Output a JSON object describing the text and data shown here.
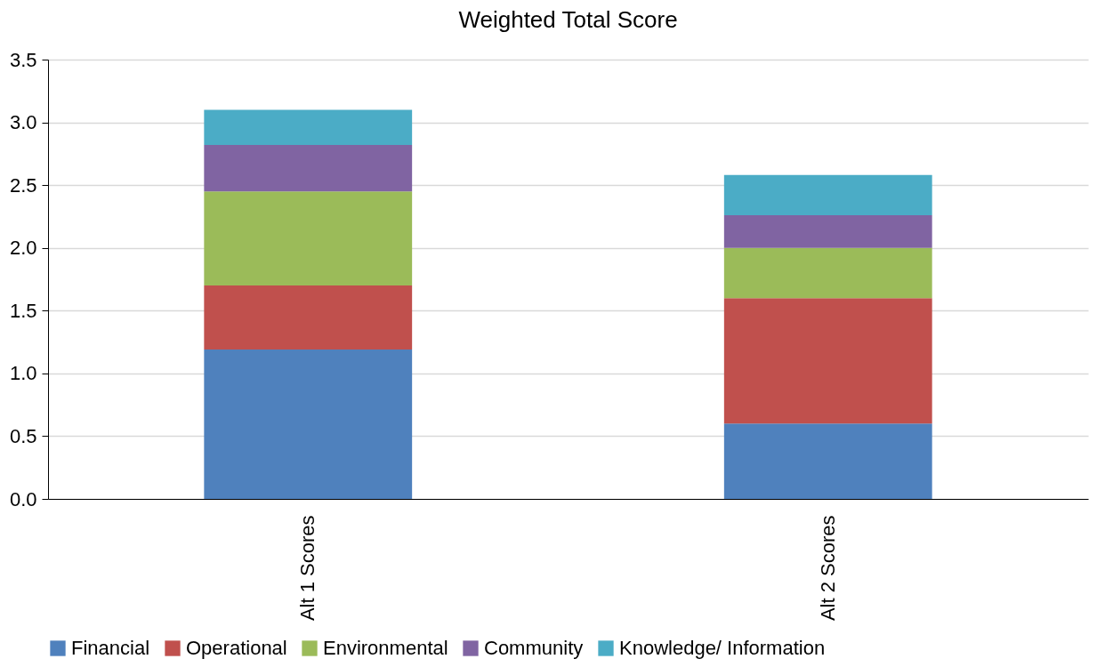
{
  "chart_data": {
    "type": "bar",
    "title": "Weighted Total Score",
    "categories": [
      "Alt 1 Scores",
      "Alt 2 Scores"
    ],
    "stacked": true,
    "series": [
      {
        "name": "Financial",
        "color": "#4f81bd",
        "values": [
          1.19,
          0.6
        ]
      },
      {
        "name": "Operational",
        "color": "#c0504d",
        "values": [
          0.51,
          1.0
        ]
      },
      {
        "name": "Environmental",
        "color": "#9bbb59",
        "values": [
          0.75,
          0.4
        ]
      },
      {
        "name": "Community",
        "color": "#8064a2",
        "values": [
          0.37,
          0.26
        ]
      },
      {
        "name": "Knowledge/ Information",
        "color": "#4bacc6",
        "values": [
          0.28,
          0.32
        ]
      }
    ],
    "ylim": [
      0,
      3.5
    ],
    "yticks": [
      {
        "value": 0,
        "label": "0.0"
      },
      {
        "value": 0.5,
        "label": "0.5"
      },
      {
        "value": 1,
        "label": "1.0"
      },
      {
        "value": 1.5,
        "label": "1.5"
      },
      {
        "value": 2,
        "label": "2.0"
      },
      {
        "value": 2.5,
        "label": "2.5"
      },
      {
        "value": 3,
        "label": "3.0"
      },
      {
        "value": 3.5,
        "label": "3.5"
      }
    ],
    "grid": "y",
    "legend": "bottom"
  }
}
